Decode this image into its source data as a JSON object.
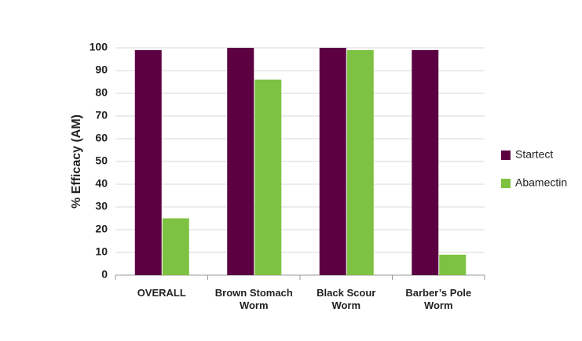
{
  "chart_data": {
    "type": "bar",
    "y_label": "% Efficacy (AM)",
    "categories": [
      "OVERALL",
      "Brown Stomach Worm",
      "Black Scour Worm",
      "Barber’s Pole Worm"
    ],
    "series": [
      {
        "name": "Startect",
        "color": "#5c0042",
        "values": [
          99,
          100,
          100,
          99
        ]
      },
      {
        "name": "Abamectin",
        "color": "#7dc242",
        "values": [
          25,
          86,
          99,
          9
        ]
      }
    ],
    "ylim": [
      0,
      100
    ],
    "yticks": [
      0,
      10,
      20,
      30,
      40,
      50,
      60,
      70,
      80,
      90,
      100
    ],
    "grid": true,
    "legend": "right"
  }
}
